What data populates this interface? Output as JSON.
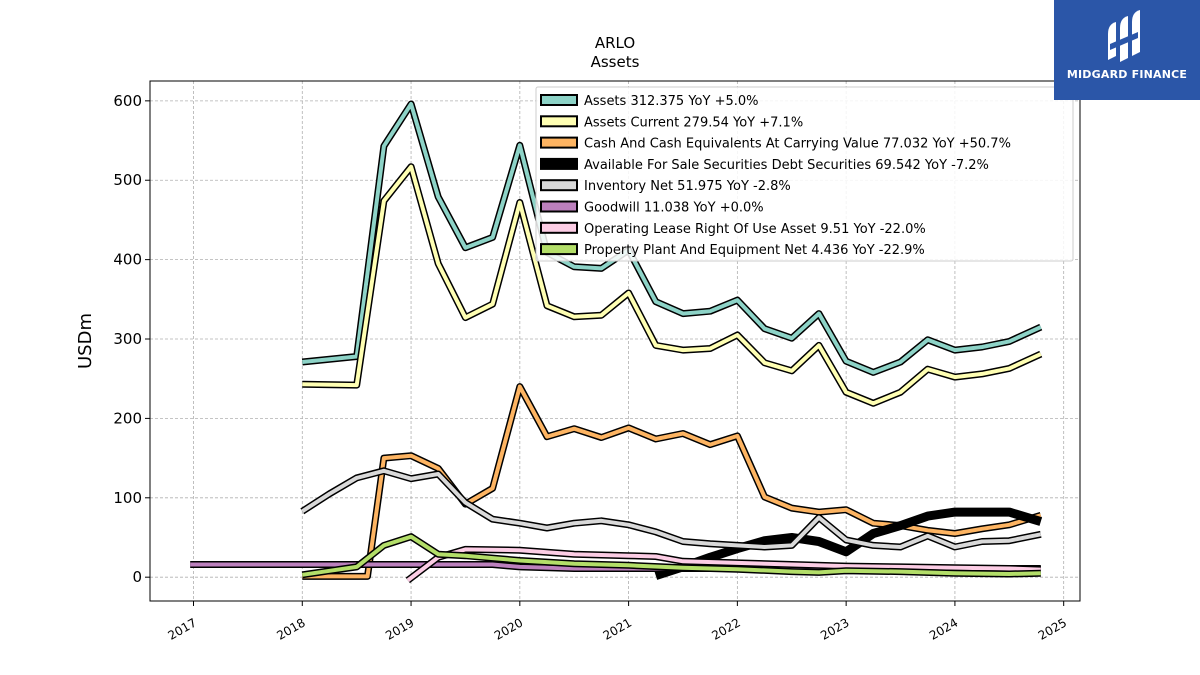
{
  "chart_data": {
    "type": "line",
    "title": "ARLO",
    "subtitle": "Assets",
    "ylabel": "USDm",
    "xlabel": "",
    "ylim": [
      -30,
      625
    ],
    "xlim": [
      2016.6,
      2025.15
    ],
    "yticks": [
      0,
      100,
      200,
      300,
      400,
      500,
      600
    ],
    "xticks": [
      "2017",
      "2018",
      "2019",
      "2020",
      "2021",
      "2022",
      "2023",
      "2024",
      "2025"
    ],
    "grid": true,
    "legend_position": "top-right",
    "series": [
      {
        "name": "Assets",
        "legend": "Assets  312.375 YoY +5.0%",
        "color": "#8dd3c7",
        "width": 4,
        "x": [
          2018.0,
          2018.5,
          2018.75,
          2019.0,
          2019.25,
          2019.5,
          2019.75,
          2020.0,
          2020.25,
          2020.5,
          2020.75,
          2021.0,
          2021.25,
          2021.5,
          2021.75,
          2022.0,
          2022.25,
          2022.5,
          2022.75,
          2023.0,
          2023.25,
          2023.5,
          2023.75,
          2024.0,
          2024.25,
          2024.5,
          2024.79
        ],
        "y": [
          271,
          278,
          543,
          596,
          479,
          415,
          428,
          544,
          409,
          391,
          389,
          412,
          347,
          332,
          335,
          349,
          313,
          301,
          332,
          272,
          258,
          271,
          299,
          286,
          290,
          297,
          315
        ]
      },
      {
        "name": "Assets Current",
        "legend": "Assets Current  279.54 YoY +7.1%",
        "color": "#ffffb3",
        "width": 4,
        "x": [
          2018.0,
          2018.5,
          2018.75,
          2019.0,
          2019.25,
          2019.5,
          2019.75,
          2020.0,
          2020.25,
          2020.5,
          2020.75,
          2021.0,
          2021.25,
          2021.5,
          2021.75,
          2022.0,
          2022.25,
          2022.5,
          2022.75,
          2023.0,
          2023.25,
          2023.5,
          2023.75,
          2024.0,
          2024.25,
          2024.5,
          2024.79
        ],
        "y": [
          243,
          242,
          474,
          517,
          395,
          327,
          344,
          472,
          342,
          328,
          330,
          358,
          292,
          286,
          288,
          305,
          270,
          260,
          292,
          233,
          219,
          233,
          262,
          252,
          256,
          263,
          281
        ]
      },
      {
        "name": "Cash And Cash Equivalents At Carrying Value",
        "legend": "Cash And Cash Equivalents At Carrying Value  77.032 YoY +50.7%",
        "color": "#fdb462",
        "width": 4,
        "x": [
          2018.0,
          2018.5,
          2018.6,
          2018.75,
          2019.0,
          2019.25,
          2019.5,
          2019.75,
          2020.0,
          2020.25,
          2020.5,
          2020.75,
          2021.0,
          2021.25,
          2021.5,
          2021.75,
          2022.0,
          2022.25,
          2022.5,
          2022.75,
          2023.0,
          2023.25,
          2023.5,
          2023.75,
          2024.0,
          2024.25,
          2024.5,
          2024.79
        ],
        "y": [
          1,
          1,
          1,
          150,
          153,
          137,
          92,
          112,
          240,
          177,
          187,
          176,
          188,
          174,
          181,
          167,
          178,
          101,
          87,
          82,
          85,
          68,
          65,
          59,
          55,
          61,
          66,
          78
        ]
      },
      {
        "name": "Available For Sale Securities Debt Securities",
        "legend": "Available For Sale Securities Debt Securities  69.542 YoY -7.2%",
        "color": "#000000",
        "width": 9,
        "x": [
          2021.25,
          2021.5,
          2021.75,
          2022.0,
          2022.25,
          2022.5,
          2022.75,
          2023.0,
          2023.25,
          2023.5,
          2023.75,
          2024.0,
          2024.25,
          2024.5,
          2024.79
        ],
        "y": [
          2,
          13,
          25,
          36,
          46,
          50,
          45,
          32,
          55,
          65,
          77,
          82,
          82,
          82,
          70
        ]
      },
      {
        "name": "Inventory Net",
        "legend": "Inventory Net  51.975 YoY -2.8%",
        "color": "#d9d9d9",
        "width": 4,
        "x": [
          2018.0,
          2018.25,
          2018.5,
          2018.75,
          2019.0,
          2019.25,
          2019.5,
          2019.75,
          2020.0,
          2020.25,
          2020.5,
          2020.75,
          2021.0,
          2021.25,
          2021.5,
          2021.75,
          2022.0,
          2022.25,
          2022.5,
          2022.75,
          2023.0,
          2023.25,
          2023.5,
          2023.75,
          2024.0,
          2024.25,
          2024.5,
          2024.79
        ],
        "y": [
          83,
          105,
          125,
          134,
          124,
          130,
          94,
          73,
          68,
          62,
          68,
          71,
          66,
          57,
          45,
          42,
          40,
          38,
          40,
          75,
          47,
          40,
          38,
          52,
          38,
          45,
          46,
          54
        ]
      },
      {
        "name": "Goodwill",
        "legend": "Goodwill  11.038 YoY +0.0%",
        "color": "#bc80bd",
        "width": 4,
        "x": [
          2016.97,
          2018.0,
          2019.0,
          2019.75,
          2020.0,
          2020.5,
          2021.0,
          2021.5,
          2022.0,
          2023.0,
          2024.0,
          2024.79
        ],
        "y": [
          16,
          16,
          16,
          16,
          13,
          11,
          11,
          11,
          11,
          11,
          11,
          11
        ]
      },
      {
        "name": "Operating Lease Right Of Use Asset",
        "legend": "Operating Lease Right Of Use Asset  9.51 YoY -22.0%",
        "color": "#fccde5",
        "width": 4,
        "x": [
          2018.97,
          2019.25,
          2019.5,
          2020.0,
          2020.5,
          2021.0,
          2021.25,
          2021.5,
          2022.0,
          2022.5,
          2023.0,
          2023.5,
          2024.0,
          2024.5,
          2024.79
        ],
        "y": [
          -4,
          25,
          35,
          34,
          29,
          27,
          26,
          20,
          18,
          16,
          14,
          13,
          12,
          11,
          9.5
        ]
      },
      {
        "name": "Property Plant And Equipment Net",
        "legend": "Property Plant And Equipment Net  4.436 YoY -22.9%",
        "color": "#b3de69",
        "width": 4,
        "x": [
          2018.0,
          2018.25,
          2018.5,
          2018.75,
          2019.0,
          2019.25,
          2019.5,
          2019.75,
          2020.0,
          2020.5,
          2021.0,
          2021.5,
          2022.0,
          2022.5,
          2022.75,
          2023.0,
          2023.5,
          2024.0,
          2024.5,
          2024.79
        ],
        "y": [
          3,
          8,
          13,
          40,
          51,
          29,
          27,
          24,
          21,
          17,
          15,
          12,
          10,
          7,
          6,
          8,
          7,
          5,
          4,
          5
        ]
      }
    ]
  },
  "logo": {
    "text": "MIDGARD FINANCE"
  }
}
